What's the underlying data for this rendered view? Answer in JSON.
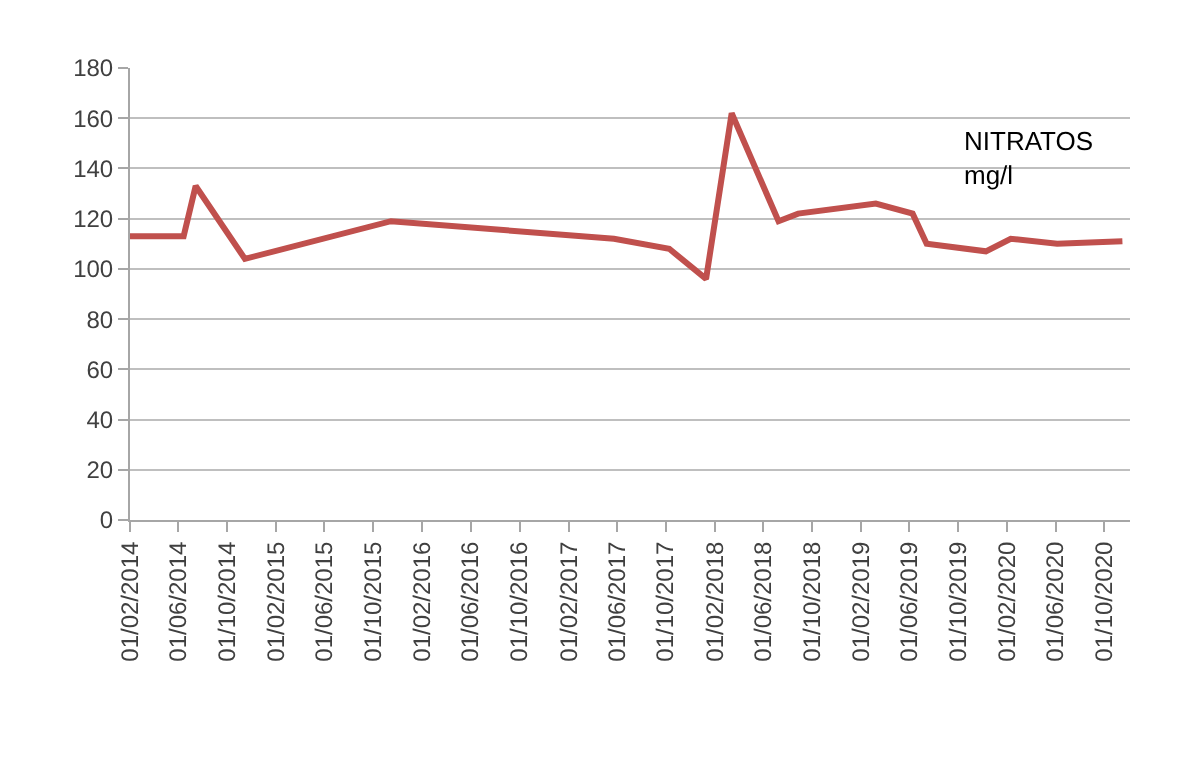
{
  "chart_data": {
    "type": "line",
    "x": [
      "2014-02-01",
      "2014-06-15",
      "2014-07-15",
      "2014-11-15",
      "2015-11-15",
      "2017-05-25",
      "2017-10-10",
      "2018-01-10",
      "2018-03-15",
      "2018-07-10",
      "2018-08-28",
      "2019-03-10",
      "2019-06-10",
      "2019-07-15",
      "2019-12-10",
      "2020-02-10",
      "2020-06-05",
      "2020-11-15"
    ],
    "series": [
      {
        "color": "#c0504d",
        "values": [
          113,
          113,
          133,
          104,
          119,
          112,
          108,
          96,
          162,
          119,
          122,
          126,
          122,
          110,
          107,
          112,
          110,
          111
        ]
      }
    ],
    "annotations": [
      "NITRATOS\nmg/l"
    ],
    "ylim": [
      0,
      180
    ],
    "yticks": [
      0,
      20,
      40,
      60,
      80,
      100,
      120,
      140,
      160,
      180
    ],
    "xlim": [
      "2014-02-01",
      "2020-12-04"
    ],
    "xticks": [
      {
        "value": "2014-02-01",
        "label": "01/02/2014"
      },
      {
        "value": "2014-06-01",
        "label": "01/06/2014"
      },
      {
        "value": "2014-10-01",
        "label": "01/10/2014"
      },
      {
        "value": "2015-02-01",
        "label": "01/02/2015"
      },
      {
        "value": "2015-06-01",
        "label": "01/06/2015"
      },
      {
        "value": "2015-10-01",
        "label": "01/10/2015"
      },
      {
        "value": "2016-02-01",
        "label": "01/02/2016"
      },
      {
        "value": "2016-06-01",
        "label": "01/06/2016"
      },
      {
        "value": "2016-10-01",
        "label": "01/10/2016"
      },
      {
        "value": "2017-02-01",
        "label": "01/02/2017"
      },
      {
        "value": "2017-06-01",
        "label": "01/06/2017"
      },
      {
        "value": "2017-10-01",
        "label": "01/10/2017"
      },
      {
        "value": "2018-02-01",
        "label": "01/02/2018"
      },
      {
        "value": "2018-06-01",
        "label": "01/06/2018"
      },
      {
        "value": "2018-10-01",
        "label": "01/10/2018"
      },
      {
        "value": "2019-02-01",
        "label": "01/02/2019"
      },
      {
        "value": "2019-06-01",
        "label": "01/06/2019"
      },
      {
        "value": "2019-10-01",
        "label": "01/10/2019"
      },
      {
        "value": "2020-02-01",
        "label": "01/02/2020"
      },
      {
        "value": "2020-06-01",
        "label": "01/06/2020"
      },
      {
        "value": "2020-10-01",
        "label": "01/10/2020"
      }
    ],
    "grid": "y",
    "marker": "none",
    "line_style": "solid"
  }
}
